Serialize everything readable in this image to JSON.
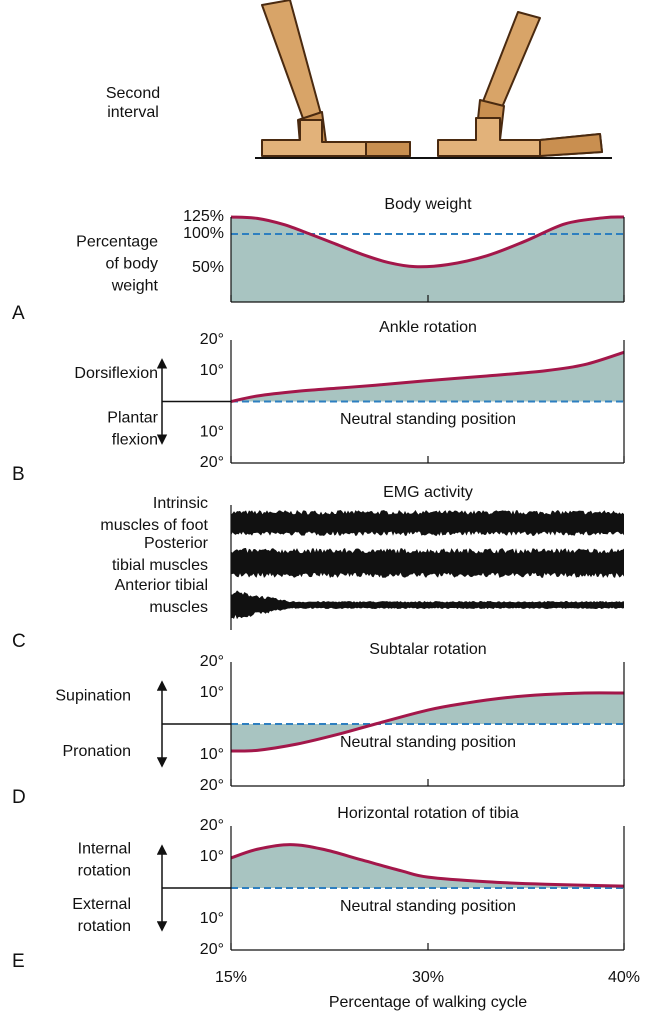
{
  "illustration": {
    "label": [
      "Second",
      "interval"
    ]
  },
  "chart_data": [
    {
      "type": "area",
      "panel_label": "A",
      "title": "Body weight",
      "y_label": [
        "Percentage",
        "of body",
        "weight"
      ],
      "x": [
        15,
        17,
        19,
        21,
        23,
        25,
        27,
        29,
        31,
        33,
        35,
        37,
        39,
        40
      ],
      "values": [
        125,
        123,
        114,
        100,
        85,
        70,
        58,
        52,
        55,
        68,
        90,
        115,
        124,
        125
      ],
      "color": "#a3174a",
      "fill": "#a8c4c1",
      "ylim": [
        0,
        125
      ],
      "yticks": [
        {
          "value": 125,
          "label": "125%"
        },
        {
          "value": 100,
          "label": "100%"
        },
        {
          "value": 50,
          "label": "50%"
        }
      ],
      "reference_line": 100,
      "reference_color": "#2d7fc0"
    },
    {
      "type": "area",
      "panel_label": "B",
      "title": "Ankle rotation",
      "y_label_upper": [
        "Dorsiflexion"
      ],
      "y_label_lower": [
        "Plantar",
        "flexion"
      ],
      "annotation": "Neutral standing position",
      "x": [
        15,
        17,
        20,
        23,
        26,
        30,
        33,
        36,
        38,
        40
      ],
      "values": [
        0,
        1.8,
        3.3,
        4.3,
        5.3,
        6.8,
        8.3,
        10,
        12,
        16
      ],
      "color": "#a3174a",
      "fill": "#a8c4c1",
      "ylim": [
        -20,
        20
      ],
      "yticks": [
        {
          "value": 20,
          "label": "20°"
        },
        {
          "value": 10,
          "label": "10°"
        },
        {
          "value": -10,
          "label": "10°"
        },
        {
          "value": -20,
          "label": "20°"
        }
      ],
      "reference_line": 0,
      "reference_color": "#2d7fc0",
      "arrows": true
    },
    {
      "type": "emg",
      "panel_label": "C",
      "title": "EMG activity",
      "traces": [
        {
          "name": [
            "Intrinsic",
            "muscles of foot"
          ]
        },
        {
          "name": [
            "Posterior",
            "tibial muscles"
          ]
        },
        {
          "name": [
            "Anterior tibial",
            "muscles"
          ]
        }
      ]
    },
    {
      "type": "area",
      "panel_label": "D",
      "title": "Subtalar rotation",
      "y_label_upper": [
        "Supination"
      ],
      "y_label_lower": [
        "Pronation"
      ],
      "annotation": "Neutral standing position",
      "x": [
        15,
        17,
        20,
        23,
        26,
        30,
        32,
        34,
        36,
        38,
        40
      ],
      "values": [
        -8.7,
        -8.5,
        -6.5,
        -3.5,
        0,
        4.5,
        6.8,
        8.5,
        9.5,
        10,
        10
      ],
      "color": "#a3174a",
      "fill": "#a8c4c1",
      "ylim": [
        -20,
        20
      ],
      "yticks": [
        {
          "value": 20,
          "label": "20°"
        },
        {
          "value": 10,
          "label": "10°"
        },
        {
          "value": -10,
          "label": "10°"
        },
        {
          "value": -20,
          "label": "20°"
        }
      ],
      "reference_line": 0,
      "reference_color": "#2d7fc0",
      "arrows": true
    },
    {
      "type": "area",
      "panel_label": "E",
      "title": "Horizontal rotation of tibia",
      "y_label_upper": [
        "Internal",
        "rotation"
      ],
      "y_label_lower": [
        "External",
        "rotation"
      ],
      "annotation": "Neutral standing position",
      "x": [
        15,
        17,
        19.5,
        22,
        25,
        28,
        30,
        33,
        36,
        40
      ],
      "values": [
        9.7,
        12.5,
        14,
        12.5,
        9,
        5.5,
        3.5,
        2,
        1.2,
        0.6
      ],
      "color": "#a3174a",
      "fill": "#a8c4c1",
      "ylim": [
        -20,
        20
      ],
      "yticks": [
        {
          "value": 20,
          "label": "20°"
        },
        {
          "value": 10,
          "label": "10°"
        },
        {
          "value": -10,
          "label": "10°"
        },
        {
          "value": -20,
          "label": "20°"
        }
      ],
      "reference_line": 0,
      "reference_color": "#2d7fc0",
      "arrows": true,
      "xticks": [
        {
          "value": 15,
          "label": "15%"
        },
        {
          "value": 30,
          "label": "30%"
        },
        {
          "value": 40,
          "label": "40%"
        }
      ],
      "xlabel": "Percentage of walking cycle"
    }
  ]
}
